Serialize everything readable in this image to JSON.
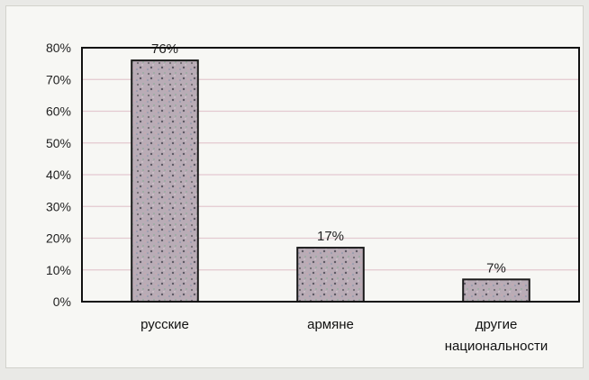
{
  "chart_data": {
    "type": "bar",
    "categories": [
      [
        "русские"
      ],
      [
        "армяне"
      ],
      [
        "другие",
        "национальности"
      ]
    ],
    "values": [
      76,
      17,
      7
    ],
    "data_labels": [
      "76%",
      "17%",
      "7%"
    ],
    "yticks": [
      "0%",
      "10%",
      "20%",
      "30%",
      "40%",
      "50%",
      "60%",
      "70%",
      "80%"
    ],
    "ylim": [
      0,
      80
    ],
    "grid": true,
    "legend": false,
    "colors": {
      "bar_fill": "#b7a9b4",
      "bar_stroke": "#1a1a1a",
      "grid": "#e4c9d0",
      "plot_border": "#111111"
    }
  }
}
